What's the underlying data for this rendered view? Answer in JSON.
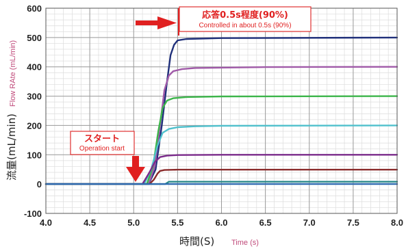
{
  "chart_data": {
    "type": "line",
    "xlabel": "時間(S)",
    "xlabel_en": "Time (s)",
    "ylabel": "流量(mL/min)",
    "ylabel_en": "Flow RAte (mL/min)",
    "xlim": [
      4.0,
      8.0
    ],
    "ylim": [
      -100,
      600
    ],
    "x_ticks": [
      "4.0",
      "4.5",
      "5.0",
      "5.5",
      "6.0",
      "6.5",
      "7.0",
      "7.5",
      "8.0"
    ],
    "y_ticks": [
      "-100",
      "0",
      "100",
      "200",
      "300",
      "400",
      "500",
      "600"
    ],
    "grid": true,
    "series": [
      {
        "color": "#1f2f7a",
        "x": [
          4.0,
          5.17,
          5.25,
          5.32,
          5.38,
          5.42,
          5.46,
          5.5,
          5.6,
          6.0,
          8.0
        ],
        "y": [
          0,
          0,
          50,
          200,
          350,
          440,
          475,
          490,
          495,
          498,
          500
        ]
      },
      {
        "color": "#a05aa8",
        "x": [
          4.0,
          5.17,
          5.24,
          5.3,
          5.35,
          5.4,
          5.45,
          5.55,
          5.7,
          6.5,
          8.0
        ],
        "y": [
          0,
          0,
          60,
          200,
          320,
          370,
          385,
          392,
          396,
          399,
          400
        ]
      },
      {
        "color": "#3cb54a",
        "x": [
          4.0,
          5.15,
          5.22,
          5.28,
          5.33,
          5.38,
          5.45,
          5.6,
          6.0,
          8.0
        ],
        "y": [
          0,
          0,
          60,
          180,
          260,
          285,
          293,
          297,
          299,
          300
        ]
      },
      {
        "color": "#4fc0cc",
        "x": [
          4.0,
          5.12,
          5.2,
          5.27,
          5.33,
          5.4,
          5.5,
          5.7,
          6.0,
          8.0
        ],
        "y": [
          0,
          0,
          50,
          130,
          175,
          188,
          194,
          197,
          199,
          200
        ]
      },
      {
        "color": "#7a2a8a",
        "x": [
          4.0,
          5.1,
          5.18,
          5.24,
          5.3,
          5.38,
          5.5,
          6.0,
          8.0
        ],
        "y": [
          0,
          0,
          40,
          75,
          92,
          97,
          99,
          100,
          100
        ]
      },
      {
        "color": "#8a2a2a",
        "x": [
          4.0,
          5.18,
          5.23,
          5.27,
          5.3,
          5.35,
          5.5,
          8.0
        ],
        "y": [
          0,
          0,
          15,
          35,
          45,
          48,
          49,
          49
        ]
      },
      {
        "color": "#2a8a8a",
        "x": [
          4.0,
          5.36,
          5.4,
          8.0
        ],
        "y": [
          0,
          0,
          8,
          8
        ]
      },
      {
        "color": "#2e6ab0",
        "x": [
          4.0,
          8.0
        ],
        "y": [
          0,
          0
        ]
      }
    ],
    "annotations": [
      {
        "title": "応答0.5s程度(90%)",
        "subtitle": "Controlled in about 0.5s (90%)"
      },
      {
        "title": "スタート",
        "subtitle": "Operation start"
      }
    ]
  }
}
